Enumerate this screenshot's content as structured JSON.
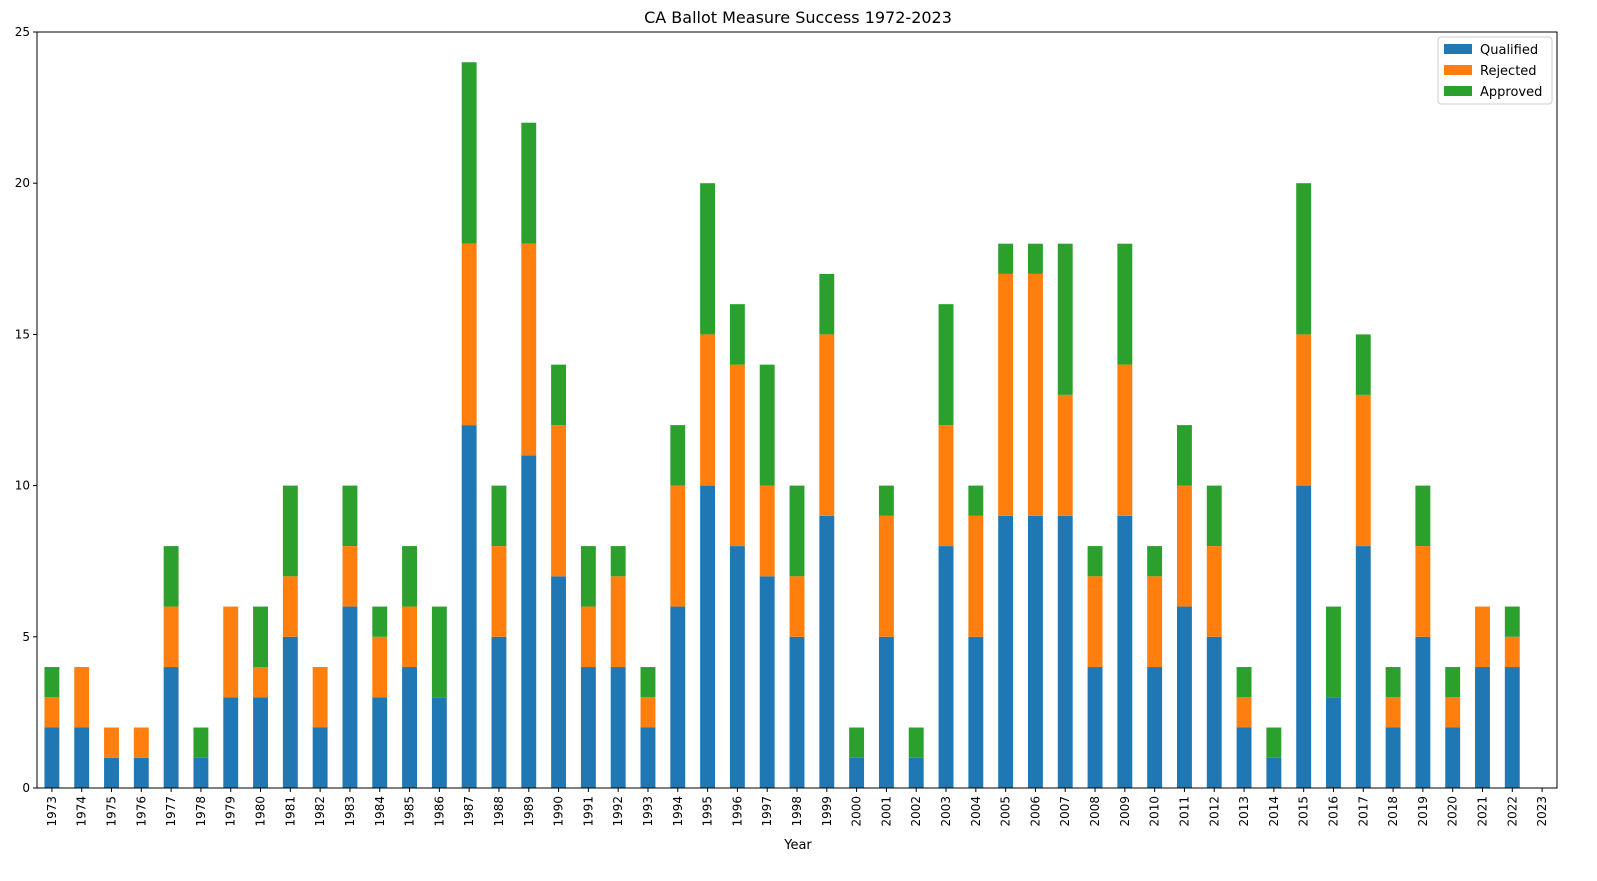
{
  "chart_data": {
    "type": "bar",
    "stacked": true,
    "title": "CA Ballot Measure Success 1972-2023",
    "xlabel": "Year",
    "ylabel": "",
    "ylim": [
      0,
      25
    ],
    "yticks": [
      0,
      5,
      10,
      15,
      20,
      25
    ],
    "grid": false,
    "legend_position": "top-right",
    "categories": [
      "1973",
      "1974",
      "1975",
      "1976",
      "1977",
      "1978",
      "1979",
      "1980",
      "1981",
      "1982",
      "1983",
      "1984",
      "1985",
      "1986",
      "1987",
      "1988",
      "1989",
      "1990",
      "1991",
      "1992",
      "1993",
      "1994",
      "1995",
      "1996",
      "1997",
      "1998",
      "1999",
      "2000",
      "2001",
      "2002",
      "2003",
      "2004",
      "2005",
      "2006",
      "2007",
      "2008",
      "2009",
      "2010",
      "2011",
      "2012",
      "2013",
      "2014",
      "2015",
      "2016",
      "2017",
      "2018",
      "2019",
      "2020",
      "2021",
      "2022",
      "2023"
    ],
    "series": [
      {
        "name": "Qualified",
        "color": "#1f77b4",
        "values": [
          2,
          2,
          1,
          1,
          4,
          1,
          3,
          3,
          5,
          2,
          6,
          3,
          4,
          3,
          12,
          5,
          11,
          7,
          4,
          4,
          2,
          6,
          10,
          8,
          7,
          5,
          9,
          1,
          5,
          1,
          8,
          5,
          9,
          9,
          9,
          4,
          9,
          4,
          6,
          5,
          2,
          1,
          10,
          3,
          8,
          2,
          5,
          2,
          4,
          4,
          0
        ]
      },
      {
        "name": "Rejected",
        "color": "#ff7f0e",
        "values": [
          1,
          2,
          1,
          1,
          2,
          0,
          3,
          1,
          2,
          2,
          2,
          2,
          2,
          0,
          6,
          3,
          7,
          5,
          2,
          3,
          1,
          4,
          5,
          6,
          3,
          2,
          6,
          0,
          4,
          0,
          4,
          4,
          8,
          8,
          4,
          3,
          5,
          3,
          4,
          3,
          1,
          0,
          5,
          0,
          5,
          1,
          3,
          1,
          2,
          1,
          0
        ]
      },
      {
        "name": "Approved",
        "color": "#2ca02c",
        "values": [
          1,
          0,
          0,
          0,
          2,
          1,
          0,
          2,
          3,
          0,
          2,
          1,
          2,
          3,
          6,
          2,
          4,
          2,
          2,
          1,
          1,
          2,
          5,
          2,
          4,
          3,
          2,
          1,
          1,
          1,
          4,
          1,
          1,
          1,
          5,
          1,
          4,
          1,
          2,
          2,
          1,
          1,
          5,
          3,
          2,
          1,
          2,
          1,
          0,
          1,
          0
        ]
      }
    ]
  }
}
